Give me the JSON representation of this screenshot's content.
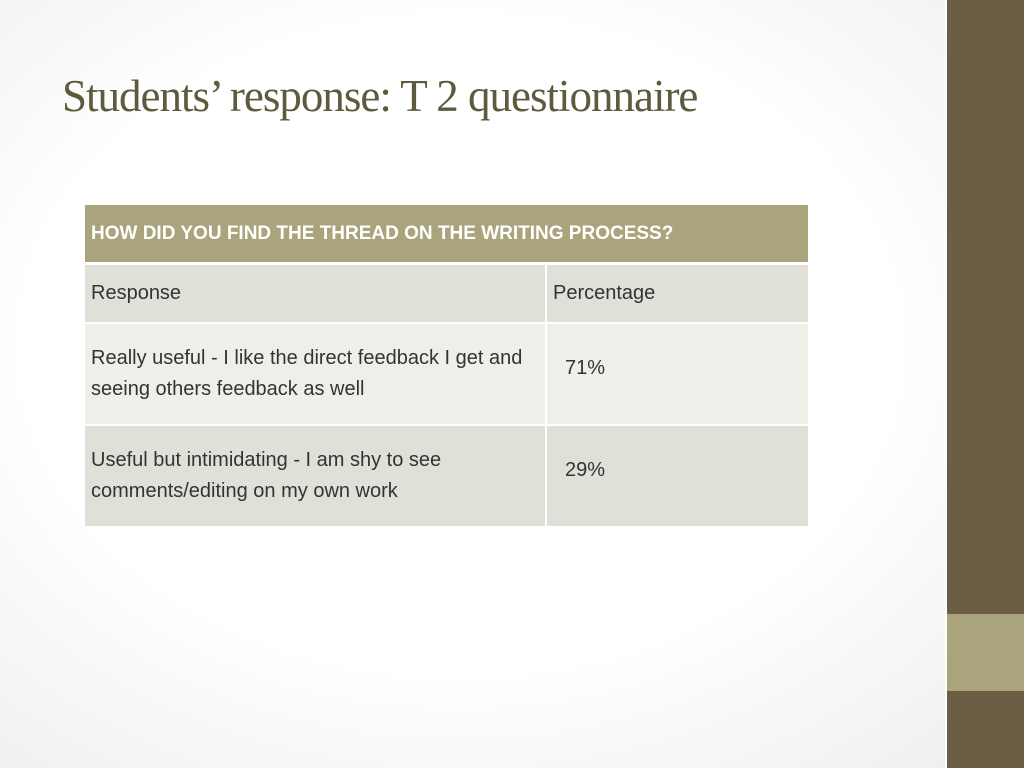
{
  "slide": {
    "title": "Students’ response: T 2 questionnaire"
  },
  "table": {
    "question": "HOW DID YOU FIND THE THREAD ON THE WRITING PROCESS?",
    "columns": [
      "Response",
      "Percentage"
    ],
    "rows": [
      {
        "response": "Really useful - I like the direct feedback I get and seeing others feedback as well",
        "percentage": "71%"
      },
      {
        "response": "Useful but intimidating - I am shy to see comments/editing on my own work",
        "percentage": "29%"
      }
    ]
  },
  "colors": {
    "sidebar": "#6b5e45",
    "accent": "#a9a47c",
    "title": "#5d5a3d"
  }
}
